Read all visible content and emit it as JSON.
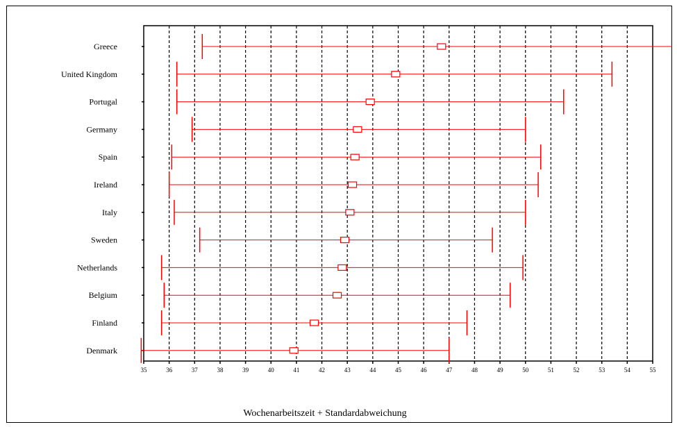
{
  "chart_data": {
    "type": "error-bar",
    "title": "",
    "xlabel": "Wochenarbeitszeit + Standardabweichung",
    "ylabel": "",
    "xlim": [
      35,
      55
    ],
    "xticks": [
      35,
      36,
      37,
      38,
      39,
      40,
      41,
      42,
      43,
      44,
      45,
      46,
      47,
      48,
      49,
      50,
      51,
      52,
      53,
      54,
      55
    ],
    "grid": "vertical-dashed",
    "color": "#ff0000",
    "categories": [
      "Greece",
      "United Kingdom",
      "Portugal",
      "Germany",
      "Spain",
      "Ireland",
      "Italy",
      "Sweden",
      "Netherlands",
      "Belgium",
      "Finland",
      "Denmark"
    ],
    "series": [
      {
        "mean": [
          46.7,
          44.9,
          43.9,
          43.4,
          43.3,
          43.2,
          43.1,
          42.9,
          42.8,
          42.6,
          41.7,
          40.9
        ],
        "lower": [
          37.3,
          36.3,
          36.3,
          36.9,
          36.1,
          36.0,
          36.2,
          37.2,
          35.7,
          35.8,
          35.7,
          34.9
        ],
        "upper": [
          55.9,
          53.4,
          51.5,
          50.0,
          50.6,
          50.5,
          50.0,
          48.7,
          49.9,
          49.4,
          47.7,
          47.0
        ]
      }
    ]
  }
}
